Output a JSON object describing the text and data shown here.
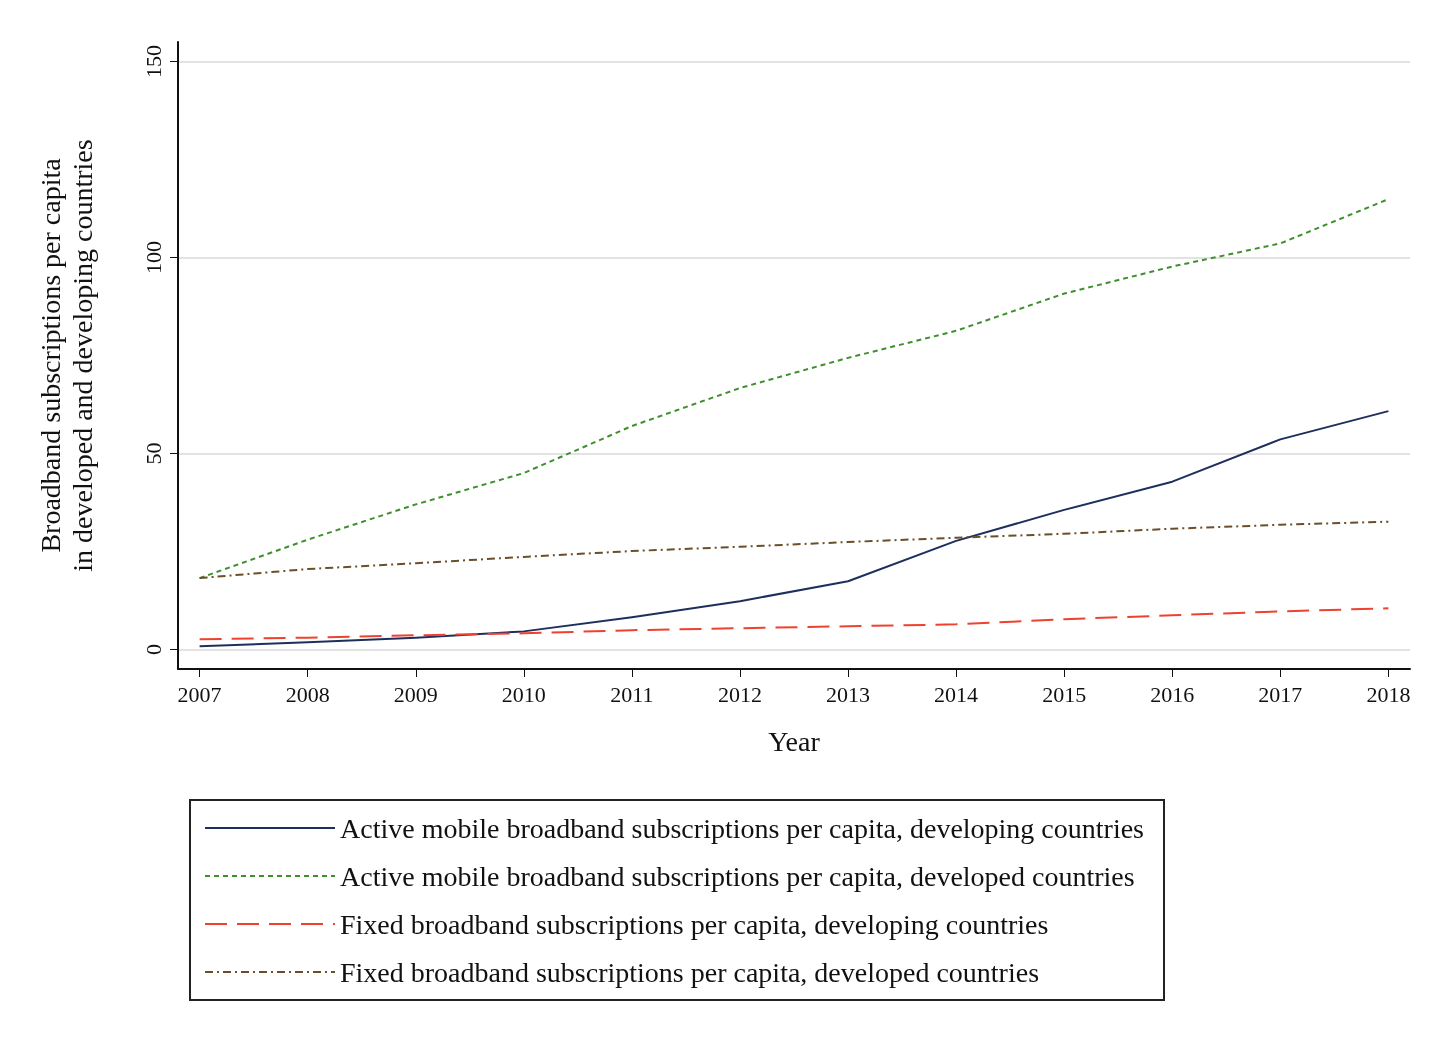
{
  "chart_data": {
    "type": "line",
    "xlabel": "Year",
    "ylabel": "Broadband subscriptions per capita\nin developed and developing countries",
    "x": [
      2007,
      2008,
      2009,
      2010,
      2011,
      2012,
      2013,
      2014,
      2015,
      2016,
      2017,
      2018
    ],
    "xlim": [
      2006.8,
      2018.2
    ],
    "xticks": [
      2007,
      2008,
      2009,
      2010,
      2011,
      2012,
      2013,
      2014,
      2015,
      2016,
      2017,
      2018
    ],
    "ylim": [
      -5,
      155
    ],
    "yticks": [
      0,
      50,
      100,
      150
    ],
    "grid": "y",
    "legend": "bottom",
    "marker": "none",
    "series": [
      {
        "name": "Active mobile broadband subscriptions per capita, developing countries",
        "color": "#1f2f5c",
        "line_style": "solid",
        "values": [
          0.8,
          1.8,
          3,
          4.6,
          8.2,
          12.3,
          17.4,
          27.7,
          35.6,
          42.8,
          53.6,
          60.8
        ]
      },
      {
        "name": "Active mobile broadband subscriptions per capita, developed countries",
        "color": "#3f8f2f",
        "line_style": "dotted",
        "values": [
          18.2,
          28,
          37,
          45,
          57,
          66.7,
          74.4,
          81.3,
          90.8,
          97.7,
          103.6,
          114.9
        ]
      },
      {
        "name": "Fixed broadband subscriptions per capita, developing countries",
        "color": "#f0412f",
        "line_style": "dashed",
        "values": [
          2.6,
          3,
          3.6,
          4.1,
          4.9,
          5.4,
          5.9,
          6.4,
          7.7,
          8.7,
          9.7,
          10.5
        ]
      },
      {
        "name": "Fixed broadband subscriptions per capita, developed countries",
        "color": "#6b4f2a",
        "line_style": "dashdot",
        "values": [
          18.2,
          20.5,
          22,
          23.6,
          25.1,
          26.2,
          27.4,
          28.5,
          29.5,
          30.8,
          31.8,
          32.6
        ]
      }
    ]
  }
}
